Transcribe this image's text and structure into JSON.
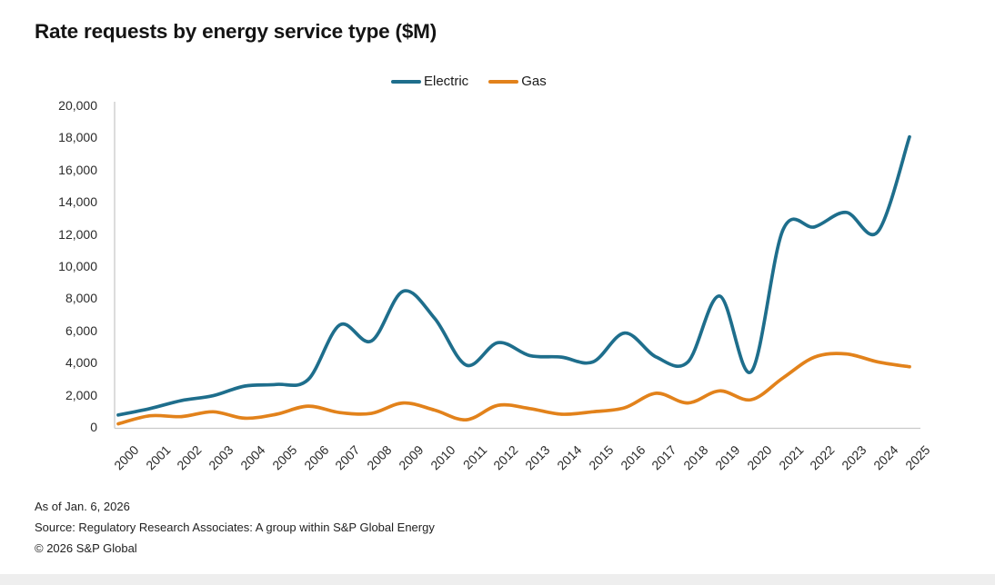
{
  "title": "Rate requests by energy service type ($M)",
  "legend": [
    {
      "label": "Electric",
      "color": "#1e6e8c"
    },
    {
      "label": "Gas",
      "color": "#e2821b"
    }
  ],
  "chart_data": {
    "type": "line",
    "title": "Rate requests by energy service type ($M)",
    "xlabel": "",
    "ylabel": "",
    "x": [
      2000,
      2001,
      2002,
      2003,
      2004,
      2005,
      2006,
      2007,
      2008,
      2009,
      2010,
      2011,
      2012,
      2013,
      2014,
      2015,
      2016,
      2017,
      2018,
      2019,
      2020,
      2021,
      2022,
      2023,
      2024,
      2025
    ],
    "series": [
      {
        "name": "Electric",
        "color": "#1e6e8c",
        "values": [
          800,
          1200,
          1700,
          2000,
          2600,
          2700,
          3000,
          6400,
          5400,
          8500,
          6800,
          3900,
          5300,
          4500,
          4400,
          4100,
          5900,
          4400,
          4100,
          8200,
          3500,
          12300,
          12500,
          13400,
          12200,
          18100
        ]
      },
      {
        "name": "Gas",
        "color": "#e2821b",
        "values": [
          250,
          750,
          700,
          1000,
          600,
          850,
          1350,
          950,
          900,
          1550,
          1100,
          500,
          1400,
          1200,
          850,
          1000,
          1250,
          2150,
          1550,
          2300,
          1750,
          3100,
          4400,
          4600,
          4100,
          3800
        ]
      }
    ],
    "ylim": [
      0,
      20000
    ],
    "yticks": [
      0,
      2000,
      4000,
      6000,
      8000,
      10000,
      12000,
      14000,
      16000,
      18000,
      20000
    ],
    "ytick_labels": [
      "0",
      "2,000",
      "4,000",
      "6,000",
      "8,000",
      "10,000",
      "12,000",
      "14,000",
      "16,000",
      "18,000",
      "20,000"
    ],
    "xtick_labels": [
      "2000",
      "2001",
      "2002",
      "2003",
      "2004",
      "2005",
      "2006",
      "2007",
      "2008",
      "2009",
      "2010",
      "2011",
      "2012",
      "2013",
      "2014",
      "2015",
      "2016",
      "2017",
      "2018",
      "2019",
      "2020",
      "2021",
      "2022",
      "2023",
      "2024",
      "2025"
    ],
    "grid": false,
    "legend_position": "top",
    "axis_color": "#c9c9c9"
  },
  "footer": {
    "as_of": "As of Jan. 6, 2026",
    "source": "Source: Regulatory Research Associates: A group within S&P Global Energy",
    "copyright": "© 2026 S&P Global"
  }
}
